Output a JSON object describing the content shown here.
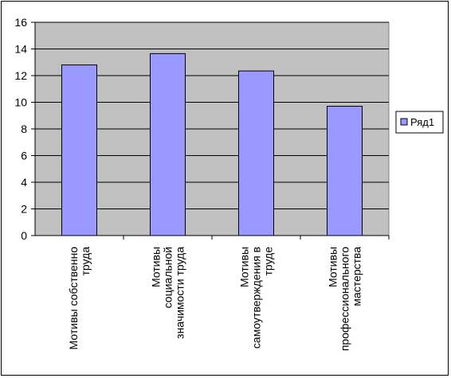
{
  "chart_data": {
    "type": "bar",
    "categories": [
      [
        "Мотивы собственно",
        "труда"
      ],
      [
        "Мотивы",
        "социальной",
        "значимости труда"
      ],
      [
        "Мотивы",
        "самоутверждения в",
        "труде"
      ],
      [
        "Мотивы",
        "профессионального",
        "мастерства"
      ]
    ],
    "series": [
      {
        "name": "Ряд1",
        "values": [
          12.8,
          13.65,
          12.35,
          9.7
        ]
      }
    ],
    "ylim": [
      0,
      16
    ],
    "yticks": [
      0,
      2,
      4,
      6,
      8,
      10,
      12,
      14,
      16
    ],
    "grid": true,
    "legend": "right",
    "title": "",
    "xlabel": "",
    "ylabel": "",
    "colors": {
      "bar_fill": "#9999ff",
      "bar_stroke": "#000000",
      "plot_bg": "#c0c0c0",
      "gridline": "#000000"
    }
  }
}
